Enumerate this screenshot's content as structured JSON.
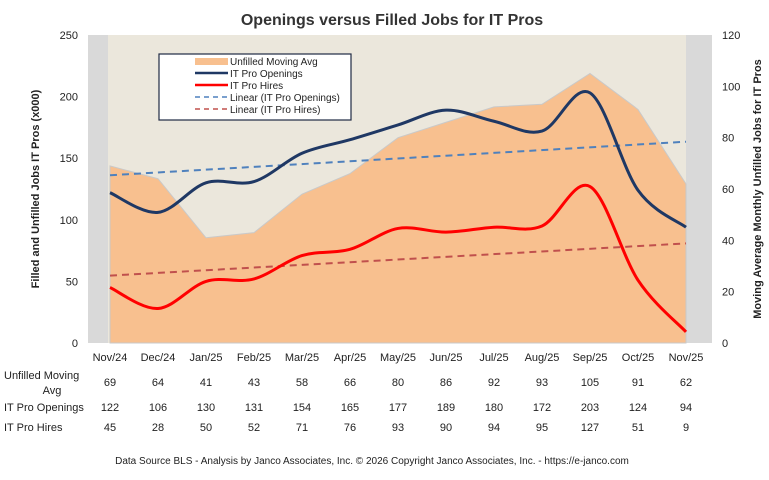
{
  "chart_data": {
    "type": "line",
    "title": "Openings versus Filled Jobs for IT Pros",
    "ylabel": "Filled and Unfilled Jobs IT Pros (x000)",
    "y2label": "Moving Average Monthly Unfilled Jobs for IT Pros",
    "ylim": [
      0,
      250
    ],
    "y2lim": [
      0,
      120
    ],
    "yticks": [
      0,
      50,
      100,
      150,
      200,
      250
    ],
    "y2ticks": [
      0,
      20,
      40,
      60,
      80,
      100,
      120
    ],
    "categories": [
      "Nov/24",
      "Dec/24",
      "Jan/25",
      "Feb/25",
      "Mar/25",
      "Apr/25",
      "May/25",
      "Jun/25",
      "Jul/25",
      "Aug/25",
      "Sep/25",
      "Oct/25",
      "Nov/25"
    ],
    "series": [
      {
        "name": "Unfilled Moving Avg",
        "table_label": "Unfilled Moving Avg",
        "type": "area",
        "axis": "right",
        "color": "#f8c08f",
        "values": [
          69,
          64,
          41,
          43,
          58,
          66,
          80,
          86,
          92,
          93,
          105,
          91,
          62
        ]
      },
      {
        "name": "IT Pro Openings",
        "table_label": "IT Pro Openings",
        "type": "line",
        "axis": "left",
        "color": "#1f3864",
        "values": [
          122,
          106,
          130,
          131,
          154,
          165,
          177,
          189,
          180,
          172,
          203,
          124,
          94
        ]
      },
      {
        "name": "IT Pro Hires",
        "table_label": "IT Pro Hires",
        "type": "line",
        "axis": "left",
        "color": "#ff0000",
        "values": [
          45,
          28,
          50,
          52,
          71,
          76,
          93,
          90,
          94,
          95,
          127,
          51,
          9
        ]
      }
    ],
    "trendlines": [
      {
        "name": "Linear (IT Pro Openings)",
        "of": 1,
        "color": "#4f81bd"
      },
      {
        "name": "Linear (IT Pro Hires)",
        "of": 2,
        "color": "#c0504d"
      }
    ],
    "legend": "top-left",
    "grid": false,
    "source": "Data Source BLS - Analysis by Janco Associates, Inc. © 2026 Copyright Janco Associates, Inc. - https://e-janco.com"
  }
}
